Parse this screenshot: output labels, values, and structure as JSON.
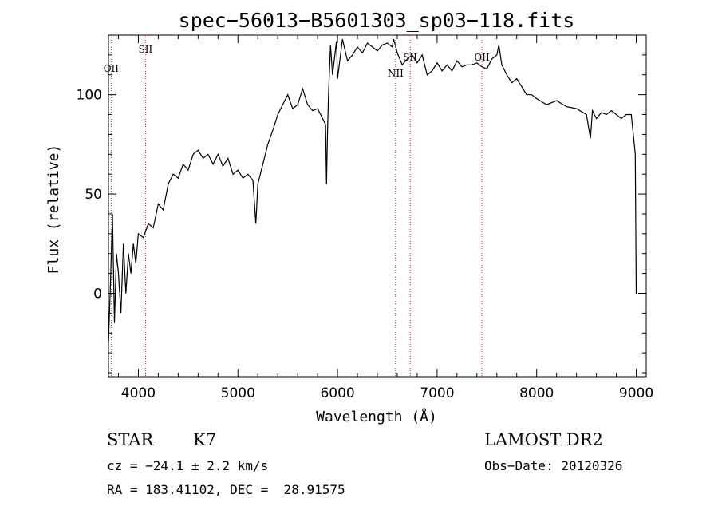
{
  "chart_data": {
    "type": "line",
    "title": "spec−56013−B5601303_sp03−118.fits",
    "xlabel": "Wavelength (Å)",
    "ylabel": "Flux (relative)",
    "xlim": [
      3700,
      9100
    ],
    "ylim": [
      -42,
      130
    ],
    "x_ticks": [
      4000,
      5000,
      6000,
      7000,
      8000,
      9000
    ],
    "y_ticks": [
      0,
      50,
      100
    ],
    "grid": false,
    "series": [
      {
        "name": "",
        "x": [
          3700,
          3720,
          3740,
          3760,
          3780,
          3800,
          3825,
          3850,
          3875,
          3900,
          3925,
          3950,
          3975,
          4000,
          4050,
          4100,
          4150,
          4200,
          4250,
          4300,
          4350,
          4400,
          4450,
          4500,
          4550,
          4600,
          4650,
          4700,
          4750,
          4800,
          4850,
          4900,
          4950,
          5000,
          5050,
          5100,
          5150,
          5180,
          5200,
          5250,
          5300,
          5350,
          5400,
          5450,
          5500,
          5550,
          5600,
          5650,
          5700,
          5750,
          5800,
          5850,
          5880,
          5890,
          5900,
          5910,
          5930,
          5950,
          5990,
          6000,
          6050,
          6100,
          6150,
          6200,
          6250,
          6300,
          6350,
          6400,
          6450,
          6500,
          6550,
          6563,
          6580,
          6600,
          6650,
          6700,
          6750,
          6800,
          6850,
          6900,
          6950,
          7000,
          7050,
          7100,
          7150,
          7200,
          7250,
          7300,
          7350,
          7400,
          7450,
          7500,
          7550,
          7600,
          7620,
          7650,
          7700,
          7750,
          7800,
          7850,
          7900,
          7950,
          8000,
          8100,
          8200,
          8300,
          8400,
          8500,
          8540,
          8560,
          8600,
          8650,
          8700,
          8750,
          8800,
          8850,
          8900,
          8950,
          8990,
          9000,
          9005
        ],
        "values": [
          -25,
          5,
          40,
          -15,
          20,
          10,
          -10,
          25,
          0,
          20,
          10,
          25,
          15,
          30,
          28,
          35,
          33,
          45,
          42,
          55,
          60,
          58,
          65,
          62,
          70,
          72,
          68,
          70,
          65,
          70,
          64,
          68,
          60,
          62,
          58,
          60,
          57,
          35,
          55,
          65,
          75,
          82,
          90,
          95,
          100,
          93,
          95,
          103,
          95,
          92,
          93,
          88,
          85,
          55,
          82,
          100,
          125,
          110,
          127,
          108,
          128,
          117,
          120,
          124,
          121,
          126,
          124,
          122,
          125,
          126,
          124,
          128,
          125,
          121,
          115,
          118,
          120,
          116,
          120,
          110,
          112,
          116,
          112,
          115,
          112,
          117,
          114,
          115,
          115,
          116,
          114,
          113,
          118,
          120,
          125,
          115,
          110,
          106,
          108,
          104,
          100,
          100,
          98,
          95,
          97,
          94,
          93,
          90,
          78,
          92,
          88,
          91,
          90,
          92,
          90,
          88,
          90,
          90,
          70,
          0,
          0
        ]
      }
    ],
    "line_markers": [
      {
        "label": "OII",
        "x": 3727
      },
      {
        "label": "SII",
        "x": 4072
      },
      {
        "label": "NII",
        "x": 6583
      },
      {
        "label": "SII",
        "x": 6730
      },
      {
        "label": "OII",
        "x": 7450
      }
    ]
  },
  "info": {
    "object_class": "STAR",
    "subclass": "K7",
    "survey": "LAMOST DR2",
    "redshift": "cz = −24.1 ± 2.2 km/s",
    "obs_date": "Obs−Date: 20120326",
    "coords": "RA = 183.41102, DEC =  28.91575"
  }
}
